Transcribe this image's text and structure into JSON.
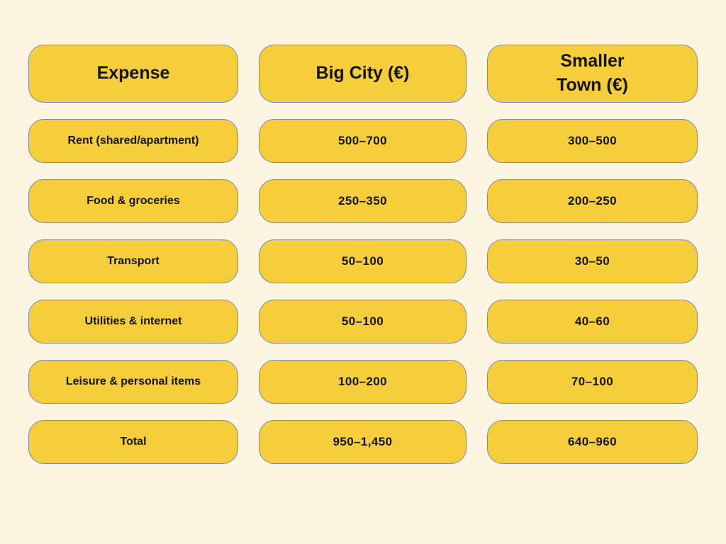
{
  "page": {
    "background_color": "#FBF5E2",
    "cell_fill_color": "#F6CE3C",
    "cell_border_color": "#7B87B0",
    "text_color": "#141414"
  },
  "chart_data": {
    "type": "table",
    "columns": [
      "Expense",
      "Big City (€)",
      "Smaller\nTown (€)"
    ],
    "rows": [
      [
        "Rent (shared/apartment)",
        "500–700",
        "300–500"
      ],
      [
        "Food & groceries",
        "250–350",
        "200–250"
      ],
      [
        "Transport",
        "50–100",
        "30–50"
      ],
      [
        "Utilities & internet",
        "50–100",
        "40–60"
      ],
      [
        "Leisure & personal items",
        "100–200",
        "70–100"
      ],
      [
        "Total",
        "950–1,450",
        "640–960"
      ]
    ]
  }
}
